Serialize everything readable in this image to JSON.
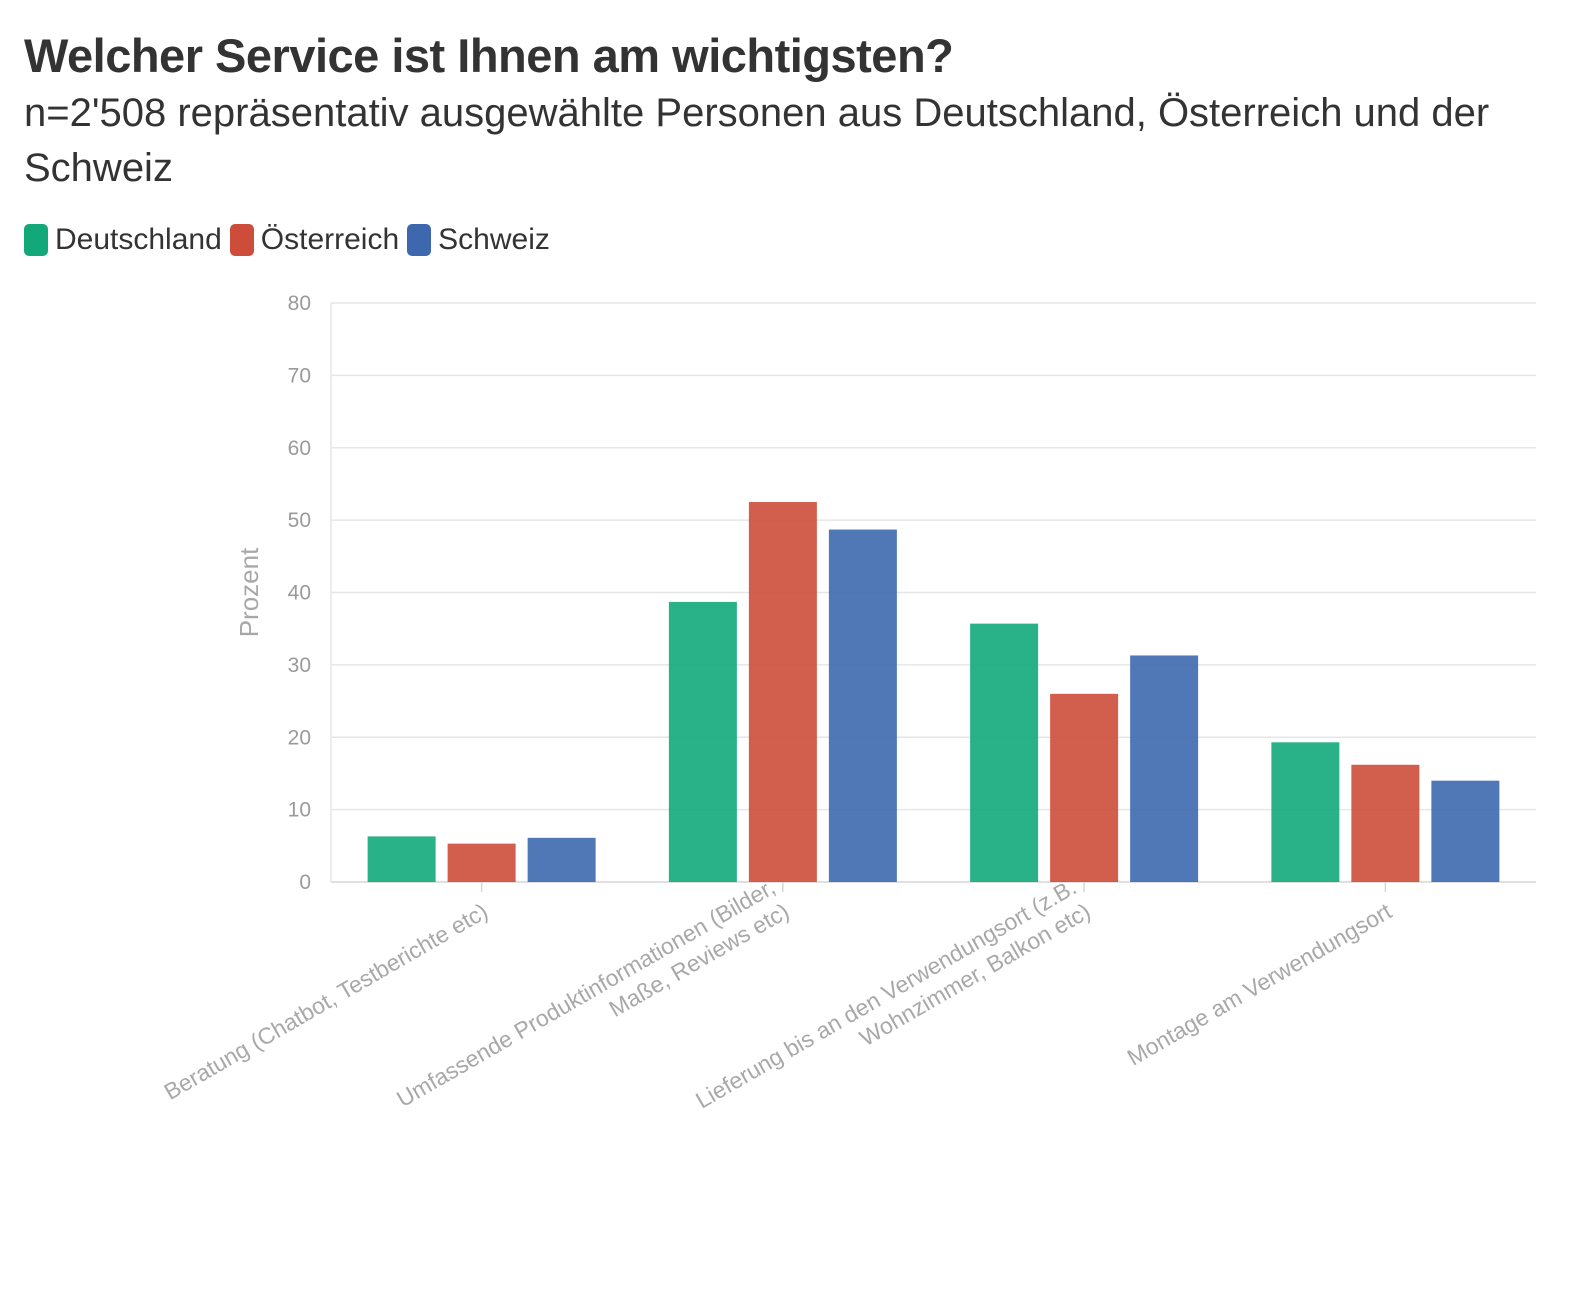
{
  "chart_data": {
    "type": "bar",
    "title": "Welcher Service ist Ihnen am wichtigsten?",
    "subtitle": "n=2'508 repräsentativ ausgewählte Personen aus Deutschland, Österreich und der Schweiz",
    "xlabel": "",
    "ylabel": "Prozent",
    "ylim": [
      0,
      80
    ],
    "yticks": [
      0,
      10,
      20,
      30,
      40,
      50,
      60,
      70,
      80
    ],
    "grid": true,
    "legend_position": "top-left",
    "categories": [
      [
        "Beratung (Chatbot, Testberichte etc)"
      ],
      [
        "Umfassende Produktinformationen (Bilder,",
        "Maße, Reviews etc)"
      ],
      [
        "Lieferung bis an den Verwendungsort (z.B.",
        "Wohnzimmer, Balkon etc)"
      ],
      [
        "Montage am Verwendungsort"
      ]
    ],
    "series": [
      {
        "name": "Deutschland",
        "color": "#12a87a",
        "values": [
          6.3,
          38.7,
          35.7,
          19.3
        ]
      },
      {
        "name": "Österreich",
        "color": "#cd4d3a",
        "values": [
          5.3,
          52.5,
          26.0,
          16.2
        ]
      },
      {
        "name": "Schweiz",
        "color": "#3d68ae",
        "values": [
          6.1,
          48.7,
          31.3,
          14.0
        ]
      }
    ]
  }
}
